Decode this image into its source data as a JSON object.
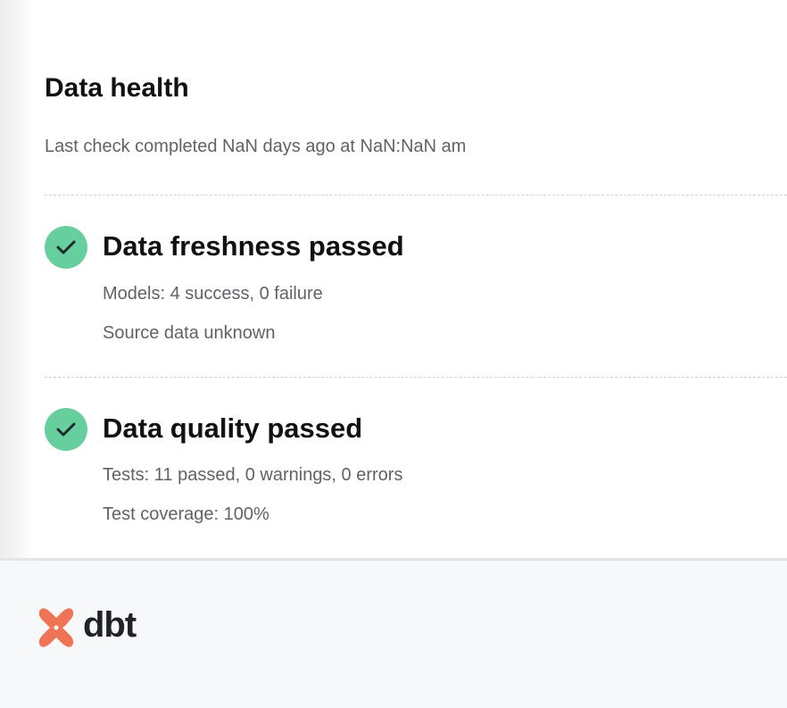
{
  "header": {
    "title": "Data health",
    "subtitle": "Last check completed NaN days ago at NaN:NaN am"
  },
  "sections": [
    {
      "status_icon": "check-icon",
      "status_color": "#67cf9e",
      "title": "Data freshness passed",
      "lines": [
        "Models: 4 success, 0 failure",
        "Source data unknown"
      ]
    },
    {
      "status_icon": "check-icon",
      "status_color": "#67cf9e",
      "title": "Data quality passed",
      "lines": [
        "Tests: 11 passed, 0 warnings, 0 errors",
        "Test coverage: 100%"
      ]
    }
  ],
  "footer": {
    "logo_text": "dbt",
    "brand_color": "#ef7355"
  }
}
